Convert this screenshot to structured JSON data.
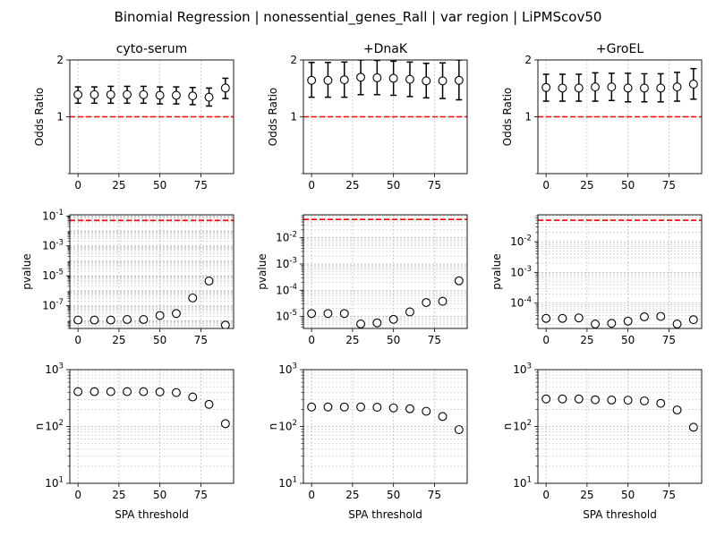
{
  "suptitle": "Binomial Regression | nonessential_genes_Rall | var region | LiPMScov50",
  "columns": [
    "cyto-serum",
    "+DnaK",
    "+GroEL"
  ],
  "chart_data": [
    {
      "type": "scatter",
      "panel": "cyto-serum / odds ratio",
      "title": "cyto-serum",
      "xlabel": "",
      "ylabel": "Odds Ratio",
      "yscale": "log",
      "ylim": [
        0.5,
        2
      ],
      "yticks": [
        1,
        2
      ],
      "ytick_labels": [
        "1",
        "2"
      ],
      "xlim": [
        -5,
        95
      ],
      "xticks": [
        0,
        25,
        50,
        75
      ],
      "xtick_labels": [
        "0",
        "25",
        "50",
        "75"
      ],
      "grid": true,
      "reference_line": 1,
      "x": [
        0,
        10,
        20,
        30,
        40,
        50,
        60,
        70,
        80,
        90
      ],
      "y": [
        1.31,
        1.31,
        1.31,
        1.31,
        1.31,
        1.3,
        1.3,
        1.29,
        1.27,
        1.42
      ],
      "err_low": [
        1.18,
        1.18,
        1.18,
        1.18,
        1.18,
        1.17,
        1.17,
        1.16,
        1.14,
        1.25
      ],
      "err_high": [
        1.44,
        1.44,
        1.45,
        1.45,
        1.45,
        1.44,
        1.44,
        1.43,
        1.42,
        1.6
      ]
    },
    {
      "type": "scatter",
      "panel": "+DnaK / odds ratio",
      "title": "+DnaK",
      "xlabel": "",
      "ylabel": "Odds Ratio",
      "yscale": "log",
      "ylim": [
        0.5,
        2
      ],
      "yticks": [
        1,
        2
      ],
      "ytick_labels": [
        "1",
        "2"
      ],
      "xlim": [
        -5,
        95
      ],
      "xticks": [
        0,
        25,
        50,
        75
      ],
      "xtick_labels": [
        "0",
        "25",
        "50",
        "75"
      ],
      "grid": true,
      "reference_line": 1,
      "x": [
        0,
        10,
        20,
        30,
        40,
        50,
        60,
        70,
        80,
        90
      ],
      "y": [
        1.56,
        1.56,
        1.57,
        1.62,
        1.61,
        1.6,
        1.58,
        1.55,
        1.55,
        1.56
      ],
      "err_low": [
        1.27,
        1.27,
        1.27,
        1.31,
        1.31,
        1.3,
        1.28,
        1.26,
        1.25,
        1.23
      ],
      "err_high": [
        1.94,
        1.94,
        1.95,
        2.0,
        1.99,
        1.97,
        1.95,
        1.92,
        1.93,
        2.0
      ]
    },
    {
      "type": "scatter",
      "panel": "+GroEL / odds ratio",
      "title": "+GroEL",
      "xlabel": "",
      "ylabel": "Odds Ratio",
      "yscale": "log",
      "ylim": [
        0.5,
        2
      ],
      "yticks": [
        1,
        2
      ],
      "ytick_labels": [
        "1",
        "2"
      ],
      "xlim": [
        -5,
        95
      ],
      "xticks": [
        0,
        25,
        50,
        75
      ],
      "xtick_labels": [
        "0",
        "25",
        "50",
        "75"
      ],
      "grid": true,
      "reference_line": 1,
      "x": [
        0,
        10,
        20,
        30,
        40,
        50,
        60,
        70,
        80,
        90
      ],
      "y": [
        1.43,
        1.42,
        1.42,
        1.44,
        1.44,
        1.42,
        1.42,
        1.42,
        1.44,
        1.49
      ],
      "err_low": [
        1.21,
        1.21,
        1.21,
        1.21,
        1.22,
        1.2,
        1.2,
        1.2,
        1.21,
        1.24
      ],
      "err_high": [
        1.68,
        1.68,
        1.68,
        1.71,
        1.7,
        1.7,
        1.69,
        1.69,
        1.72,
        1.8
      ]
    },
    {
      "type": "scatter",
      "panel": "cyto-serum / pvalue",
      "title": "",
      "xlabel": "",
      "ylabel": "pvalue",
      "yscale": "log",
      "ylim": [
        3e-09,
        0.12
      ],
      "yticks": [
        1e-07,
        1e-05,
        0.001,
        0.1
      ],
      "ytick_labels": [
        "10^-7",
        "10^-5",
        "10^-3",
        "10^-1"
      ],
      "xlim": [
        -5,
        95
      ],
      "xticks": [
        0,
        25,
        50,
        75
      ],
      "xtick_labels": [
        "0",
        "25",
        "50",
        "75"
      ],
      "grid": true,
      "reference_line": 0.05,
      "x": [
        0,
        10,
        20,
        30,
        40,
        50,
        60,
        70,
        80,
        90
      ],
      "y": [
        1.1e-08,
        1.1e-08,
        1.1e-08,
        1.2e-08,
        1.2e-08,
        2.2e-08,
        3e-08,
        3.3e-07,
        4.5e-06,
        5e-09
      ]
    },
    {
      "type": "scatter",
      "panel": "+DnaK / pvalue",
      "title": "",
      "xlabel": "",
      "ylabel": "pvalue",
      "yscale": "log",
      "ylim": [
        3.5e-06,
        0.075
      ],
      "yticks": [
        1e-05,
        0.0001,
        0.001,
        0.01
      ],
      "ytick_labels": [
        "10^-5",
        "10^-4",
        "10^-3",
        "10^-2"
      ],
      "xlim": [
        -5,
        95
      ],
      "xticks": [
        0,
        25,
        50,
        75
      ],
      "xtick_labels": [
        "0",
        "25",
        "50",
        "75"
      ],
      "grid": true,
      "reference_line": 0.05,
      "x": [
        0,
        10,
        20,
        30,
        40,
        50,
        60,
        70,
        80,
        90
      ],
      "y": [
        1.3e-05,
        1.3e-05,
        1.3e-05,
        5.2e-06,
        5.7e-06,
        7.8e-06,
        1.5e-05,
        3.4e-05,
        3.8e-05,
        0.00023
      ]
    },
    {
      "type": "scatter",
      "panel": "+GroEL / pvalue",
      "title": "",
      "xlabel": "",
      "ylabel": "pvalue",
      "yscale": "log",
      "ylim": [
        1.5e-05,
        0.075
      ],
      "yticks": [
        0.0001,
        0.001,
        0.01
      ],
      "ytick_labels": [
        "10^-4",
        "10^-3",
        "10^-2"
      ],
      "xlim": [
        -5,
        95
      ],
      "xticks": [
        0,
        25,
        50,
        75
      ],
      "xtick_labels": [
        "0",
        "25",
        "50",
        "75"
      ],
      "grid": true,
      "reference_line": 0.05,
      "x": [
        0,
        10,
        20,
        30,
        40,
        50,
        60,
        70,
        80,
        90
      ],
      "y": [
        3.2e-05,
        3.2e-05,
        3.3e-05,
        2.1e-05,
        2.2e-05,
        2.6e-05,
        3.6e-05,
        3.7e-05,
        2.1e-05,
        2.9e-05
      ]
    },
    {
      "type": "scatter",
      "panel": "cyto-serum / n",
      "title": "",
      "xlabel": "SPA threshold",
      "ylabel": "n",
      "yscale": "log",
      "ylim": [
        10,
        1000
      ],
      "yticks": [
        10,
        100,
        1000
      ],
      "ytick_labels": [
        "10^1",
        "10^2",
        "10^3"
      ],
      "xlim": [
        -5,
        95
      ],
      "xticks": [
        0,
        25,
        50,
        75
      ],
      "xtick_labels": [
        "0",
        "25",
        "50",
        "75"
      ],
      "grid": true,
      "x": [
        0,
        10,
        20,
        30,
        40,
        50,
        60,
        70,
        80,
        90
      ],
      "y": [
        410,
        410,
        410,
        410,
        410,
        405,
        395,
        330,
        245,
        112
      ]
    },
    {
      "type": "scatter",
      "panel": "+DnaK / n",
      "title": "",
      "xlabel": "SPA threshold",
      "ylabel": "n",
      "yscale": "log",
      "ylim": [
        10,
        1000
      ],
      "yticks": [
        10,
        100,
        1000
      ],
      "ytick_labels": [
        "10^1",
        "10^2",
        "10^3"
      ],
      "xlim": [
        -5,
        95
      ],
      "xticks": [
        0,
        25,
        50,
        75
      ],
      "xtick_labels": [
        "0",
        "25",
        "50",
        "75"
      ],
      "grid": true,
      "x": [
        0,
        10,
        20,
        30,
        40,
        50,
        60,
        70,
        80,
        90
      ],
      "y": [
        220,
        220,
        220,
        220,
        218,
        212,
        205,
        185,
        150,
        88
      ]
    },
    {
      "type": "scatter",
      "panel": "+GroEL / n",
      "title": "",
      "xlabel": "SPA threshold",
      "ylabel": "n",
      "yscale": "log",
      "ylim": [
        10,
        1000
      ],
      "yticks": [
        10,
        100,
        1000
      ],
      "ytick_labels": [
        "10^1",
        "10^2",
        "10^3"
      ],
      "xlim": [
        -5,
        95
      ],
      "xticks": [
        0,
        25,
        50,
        75
      ],
      "xtick_labels": [
        "0",
        "25",
        "50",
        "75"
      ],
      "grid": true,
      "x": [
        0,
        10,
        20,
        30,
        40,
        50,
        60,
        70,
        80,
        90
      ],
      "y": [
        305,
        305,
        305,
        295,
        292,
        290,
        282,
        255,
        195,
        97
      ]
    }
  ],
  "colors": {
    "marker_edge": "#000000",
    "marker_face": "#ffffff",
    "errorbar": "#000000",
    "reference_line": "#ff0000",
    "grid": "#b0b0b0",
    "axes": "#000000"
  }
}
